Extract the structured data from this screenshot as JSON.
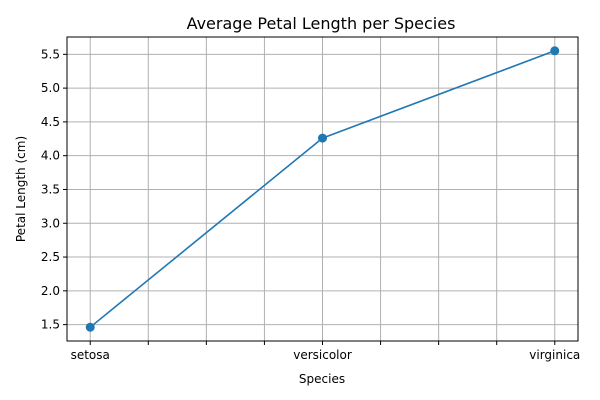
{
  "chart_data": {
    "type": "line",
    "title": "Average Petal Length per Species",
    "xlabel": "Species",
    "ylabel": "Petal Length (cm)",
    "categories": [
      "setosa",
      "versicolor",
      "virginica"
    ],
    "values": [
      1.462,
      4.26,
      5.552
    ],
    "x_ticks": [
      0,
      0.25,
      0.5,
      0.75,
      1.0,
      1.25,
      1.5,
      1.75,
      2.0
    ],
    "x_tick_labels": [
      "setosa",
      "",
      "",
      "",
      "versicolor",
      "",
      "",
      "",
      "virginica"
    ],
    "y_ticks": [
      1.5,
      2.0,
      2.5,
      3.0,
      3.5,
      4.0,
      4.5,
      5.0,
      5.5
    ],
    "y_tick_labels": [
      "1.5",
      "2.0",
      "2.5",
      "3.0",
      "3.5",
      "4.0",
      "4.5",
      "5.0",
      "5.5"
    ],
    "xlim": [
      -0.1,
      2.1
    ],
    "ylim": [
      1.2576,
      5.7564
    ],
    "grid": true,
    "marker": "circle",
    "color": "#1f77b4"
  }
}
